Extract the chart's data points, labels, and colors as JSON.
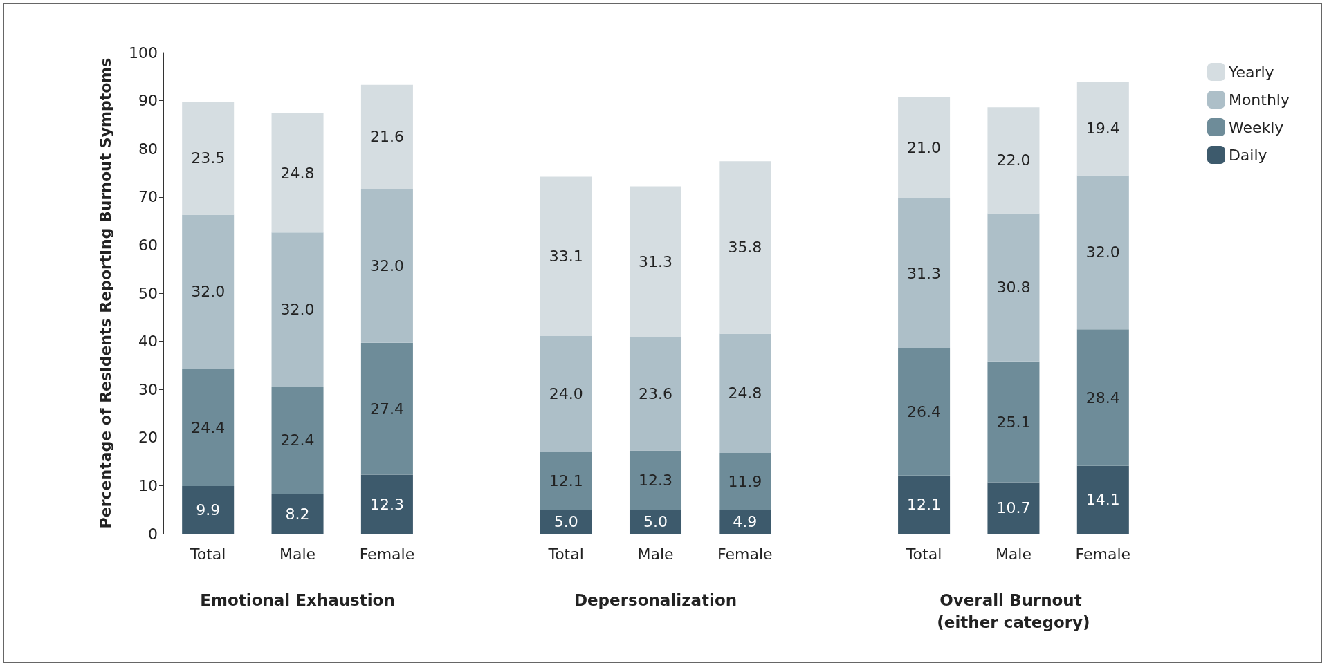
{
  "chart_data": {
    "type": "bar",
    "stacked": true,
    "ylabel": "Percentage of Residents Reporting Burnout Symptoms",
    "categories": [
      "Total",
      "Male",
      "Female",
      null,
      "Total",
      "Male",
      "Female",
      null,
      "Total",
      "Male",
      "Female"
    ],
    "series": [
      {
        "name": "Daily",
        "color": "#3d5a6c",
        "values": [
          9.9,
          8.2,
          12.3,
          null,
          5.0,
          5.0,
          4.9,
          null,
          12.1,
          10.7,
          14.1
        ],
        "value_labels": [
          "9.9",
          "8.2",
          "12.3",
          null,
          "5.0",
          "5.0",
          "4.9",
          null,
          "12.1",
          "10.7",
          "14.1"
        ]
      },
      {
        "name": "Weekly",
        "color": "#6e8c99",
        "values": [
          24.4,
          22.4,
          27.4,
          null,
          12.1,
          12.3,
          11.9,
          null,
          26.4,
          25.1,
          28.4
        ],
        "value_labels": [
          "24.4",
          "22.4",
          "27.4",
          null,
          "12.1",
          "12.3",
          "11.9",
          null,
          "26.4",
          "25.1",
          "28.4"
        ]
      },
      {
        "name": "Monthly",
        "color": "#adbfc8",
        "values": [
          32.0,
          32.0,
          32.0,
          null,
          24.0,
          23.6,
          24.8,
          null,
          31.3,
          30.8,
          32.0
        ],
        "value_labels": [
          "32.0",
          "32.0",
          "32.0",
          null,
          "24.0",
          "23.6",
          "24.8",
          null,
          "31.3",
          "30.8",
          "32.0"
        ]
      },
      {
        "name": "Yearly",
        "color": "#d5dde1",
        "values": [
          23.5,
          24.8,
          21.6,
          null,
          33.1,
          31.3,
          35.8,
          null,
          21.0,
          22.0,
          19.4
        ],
        "value_labels": [
          "23.5",
          "24.8",
          "21.6",
          null,
          "33.1",
          "31.3",
          "35.8",
          null,
          "21.0",
          "22.0",
          "19.4"
        ]
      }
    ],
    "ylim": [
      0,
      100
    ],
    "yticks": [
      0,
      10,
      20,
      30,
      40,
      50,
      60,
      70,
      80,
      90,
      100
    ],
    "legend": "top right",
    "grid": false,
    "annotations": [
      "Emotional Exhaustion",
      "Depersonalization",
      "Overall Burnout (either category)"
    ]
  }
}
